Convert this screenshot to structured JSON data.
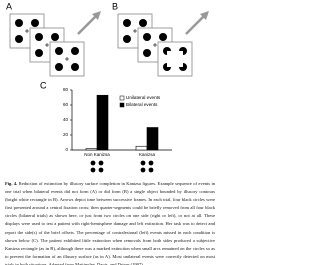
{
  "panels": {
    "a": "A",
    "b": "B"
  },
  "chart_data": {
    "type": "bar",
    "panel_label": "C",
    "categories": [
      "Non Kanizsa",
      "Kanizsa"
    ],
    "series": [
      {
        "name": "Unilateral events",
        "color": "#ffffff",
        "values": [
          2,
          5
        ]
      },
      {
        "name": "Bilateral events",
        "color": "#000000",
        "values": [
          73,
          30
        ]
      }
    ],
    "ylim": [
      0,
      80
    ],
    "yticks": [
      0,
      20,
      40,
      60,
      80
    ],
    "grid": false,
    "legend": "top-right"
  },
  "caption": {
    "label": "Fig. 4.",
    "text": "Reduction of extinction by illusory surface completion in Kanizsa figures. Example sequence of events in one trial when bilateral events did not form (A) or did form (B) a single object bounded by illusory contours (bright white rectangle in B). Arrows depict time between successive frames. In each trial, four black circles were first presented around a central fixation cross; then quarter-segments could be briefly removed from all four black circles (bilateral trials) as shown here, or just from two circles on one side (right or left), or not at all. These displays were used to test a patient with right-hemisphere damage and left extinction. Her task was to detect and report the side(s) of the brief offsets. The percentage of contralesional (left) events missed in each condition is shown below (C). The patient exhibited little extinction when removals from both sides produced a subjective Kanizsa rectangle (as in B), although there was a marked extinction when small arcs remained on the circles so as to prevent the formation of an illusory surface (as in A). Most unilateral events were correctly detected on most trials in both situations. Adapted from Mattingley, Davis, and Driver (1997)."
  }
}
